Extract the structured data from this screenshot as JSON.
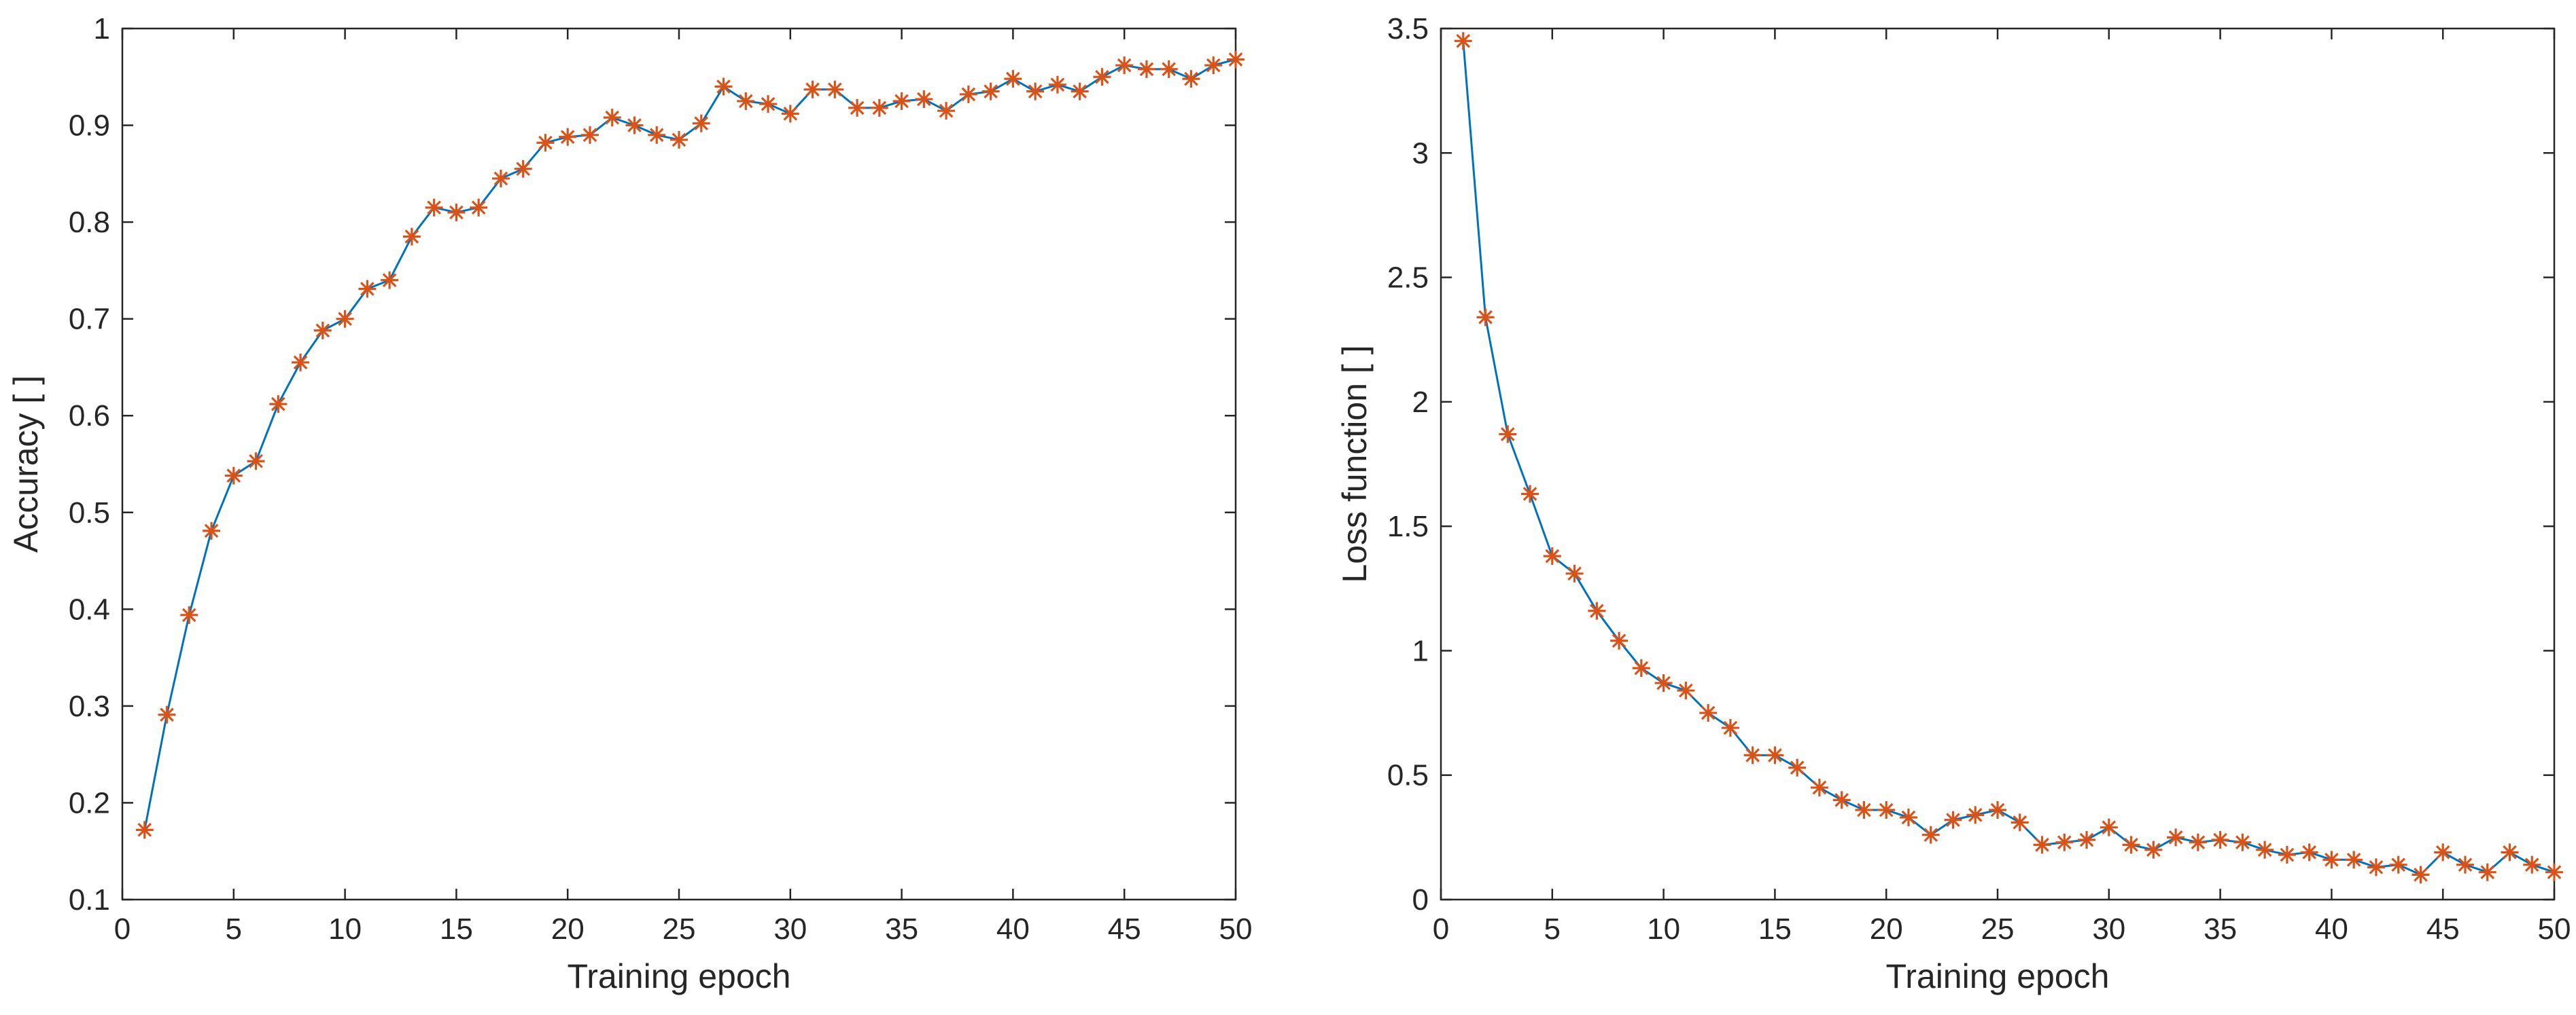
{
  "figure": {
    "background": "#ffffff"
  },
  "chart_data": [
    {
      "type": "line",
      "title": "",
      "xlabel": "Training epoch",
      "ylabel": "Accuracy [ ]",
      "xlim": [
        0,
        50
      ],
      "ylim": [
        0.1,
        1
      ],
      "xticks": [
        0,
        5,
        10,
        15,
        20,
        25,
        30,
        35,
        40,
        45,
        50
      ],
      "xtick_labels": [
        "0",
        "5",
        "10",
        "15",
        "20",
        "25",
        "30",
        "35",
        "40",
        "45",
        "50"
      ],
      "yticks": [
        0.1,
        0.2,
        0.3,
        0.4,
        0.5,
        0.6,
        0.7,
        0.8,
        0.9,
        1
      ],
      "ytick_labels": [
        "0.1",
        "0.2",
        "0.3",
        "0.4",
        "0.5",
        "0.6",
        "0.7",
        "0.8",
        "0.9",
        "1"
      ],
      "grid": false,
      "series": [
        {
          "name": "Accuracy",
          "line_color": "#0072BD",
          "marker": "asterisk",
          "marker_color": "#D95319",
          "x": [
            1,
            2,
            3,
            4,
            5,
            6,
            7,
            8,
            9,
            10,
            11,
            12,
            13,
            14,
            15,
            16,
            17,
            18,
            19,
            20,
            21,
            22,
            23,
            24,
            25,
            26,
            27,
            28,
            29,
            30,
            31,
            32,
            33,
            34,
            35,
            36,
            37,
            38,
            39,
            40,
            41,
            42,
            43,
            44,
            45,
            46,
            47,
            48,
            49,
            50
          ],
          "y": [
            0.172,
            0.291,
            0.394,
            0.481,
            0.538,
            0.553,
            0.612,
            0.655,
            0.688,
            0.7,
            0.731,
            0.74,
            0.785,
            0.815,
            0.81,
            0.815,
            0.845,
            0.855,
            0.882,
            0.888,
            0.89,
            0.908,
            0.9,
            0.89,
            0.885,
            0.902,
            0.94,
            0.925,
            0.922,
            0.912,
            0.937,
            0.937,
            0.918,
            0.918,
            0.925,
            0.927,
            0.915,
            0.932,
            0.935,
            0.948,
            0.935,
            0.942,
            0.935,
            0.95,
            0.962,
            0.958,
            0.958,
            0.948,
            0.962,
            0.968
          ]
        }
      ]
    },
    {
      "type": "line",
      "title": "",
      "xlabel": "Training epoch",
      "ylabel": "Loss function [ ]",
      "xlim": [
        0,
        50
      ],
      "ylim": [
        0,
        3.5
      ],
      "xticks": [
        0,
        5,
        10,
        15,
        20,
        25,
        30,
        35,
        40,
        45,
        50
      ],
      "xtick_labels": [
        "0",
        "5",
        "10",
        "15",
        "20",
        "25",
        "30",
        "35",
        "40",
        "45",
        "50"
      ],
      "yticks": [
        0,
        0.5,
        1,
        1.5,
        2,
        2.5,
        3,
        3.5
      ],
      "ytick_labels": [
        "0",
        "0.5",
        "1",
        "1.5",
        "2",
        "2.5",
        "3",
        "3.5"
      ],
      "grid": false,
      "series": [
        {
          "name": "Loss",
          "line_color": "#0072BD",
          "marker": "asterisk",
          "marker_color": "#D95319",
          "x": [
            1,
            2,
            3,
            4,
            5,
            6,
            7,
            8,
            9,
            10,
            11,
            12,
            13,
            14,
            15,
            16,
            17,
            18,
            19,
            20,
            21,
            22,
            23,
            24,
            25,
            26,
            27,
            28,
            29,
            30,
            31,
            32,
            33,
            34,
            35,
            36,
            37,
            38,
            39,
            40,
            41,
            42,
            43,
            44,
            45,
            46,
            47,
            48,
            49,
            50
          ],
          "y": [
            3.45,
            2.34,
            1.87,
            1.63,
            1.38,
            1.31,
            1.16,
            1.04,
            0.93,
            0.87,
            0.84,
            0.75,
            0.69,
            0.58,
            0.58,
            0.53,
            0.45,
            0.4,
            0.36,
            0.36,
            0.33,
            0.26,
            0.32,
            0.34,
            0.36,
            0.31,
            0.22,
            0.23,
            0.24,
            0.29,
            0.22,
            0.2,
            0.25,
            0.23,
            0.24,
            0.23,
            0.2,
            0.18,
            0.19,
            0.16,
            0.16,
            0.13,
            0.14,
            0.1,
            0.19,
            0.14,
            0.11,
            0.19,
            0.14,
            0.11
          ]
        }
      ]
    }
  ]
}
